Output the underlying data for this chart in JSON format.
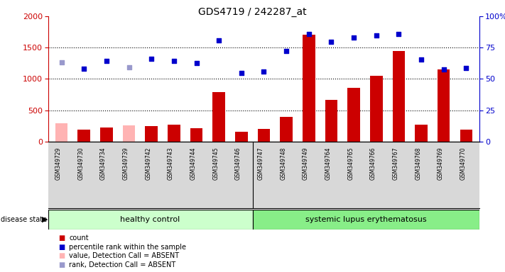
{
  "title": "GDS4719 / 242287_at",
  "samples": [
    "GSM349729",
    "GSM349730",
    "GSM349734",
    "GSM349739",
    "GSM349742",
    "GSM349743",
    "GSM349744",
    "GSM349745",
    "GSM349746",
    "GSM349747",
    "GSM349748",
    "GSM349749",
    "GSM349764",
    "GSM349765",
    "GSM349766",
    "GSM349767",
    "GSM349768",
    "GSM349769",
    "GSM349770"
  ],
  "counts": [
    290,
    185,
    220,
    255,
    250,
    265,
    215,
    790,
    160,
    200,
    395,
    1710,
    670,
    860,
    1050,
    1440,
    270,
    1150,
    185
  ],
  "absent_count_indices": [
    0,
    3
  ],
  "percentile_ranks": [
    1270,
    1160,
    1285,
    1185,
    1320,
    1290,
    1250,
    1620,
    1090,
    1120,
    1440,
    1720,
    1590,
    1660,
    1700,
    1720,
    1310,
    1150,
    1175
  ],
  "absent_rank_indices": [
    0,
    3
  ],
  "healthy_count": 9,
  "disease_label": "healthy control",
  "disease2_label": "systemic lupus erythematosus",
  "disease_state_label": "disease state",
  "ylim_left": [
    0,
    2000
  ],
  "ylim_right": [
    0,
    100
  ],
  "left_yticks": [
    0,
    500,
    1000,
    1500,
    2000
  ],
  "right_yticks": [
    0,
    25,
    50,
    75,
    100
  ],
  "right_yticklabels": [
    "0",
    "25",
    "50",
    "75",
    "100%"
  ],
  "bar_color_normal": "#cc0000",
  "bar_color_absent": "#ffb3b3",
  "dot_color_normal": "#0000cc",
  "dot_color_absent": "#9999cc",
  "healthy_bg": "#ccffcc",
  "sle_bg": "#88ee88",
  "xtick_bg": "#d8d8d8",
  "legend_items": [
    {
      "label": "count",
      "color": "#cc0000"
    },
    {
      "label": "percentile rank within the sample",
      "color": "#0000cc"
    },
    {
      "label": "value, Detection Call = ABSENT",
      "color": "#ffb3b3"
    },
    {
      "label": "rank, Detection Call = ABSENT",
      "color": "#9999cc"
    }
  ],
  "background_color": "#ffffff"
}
